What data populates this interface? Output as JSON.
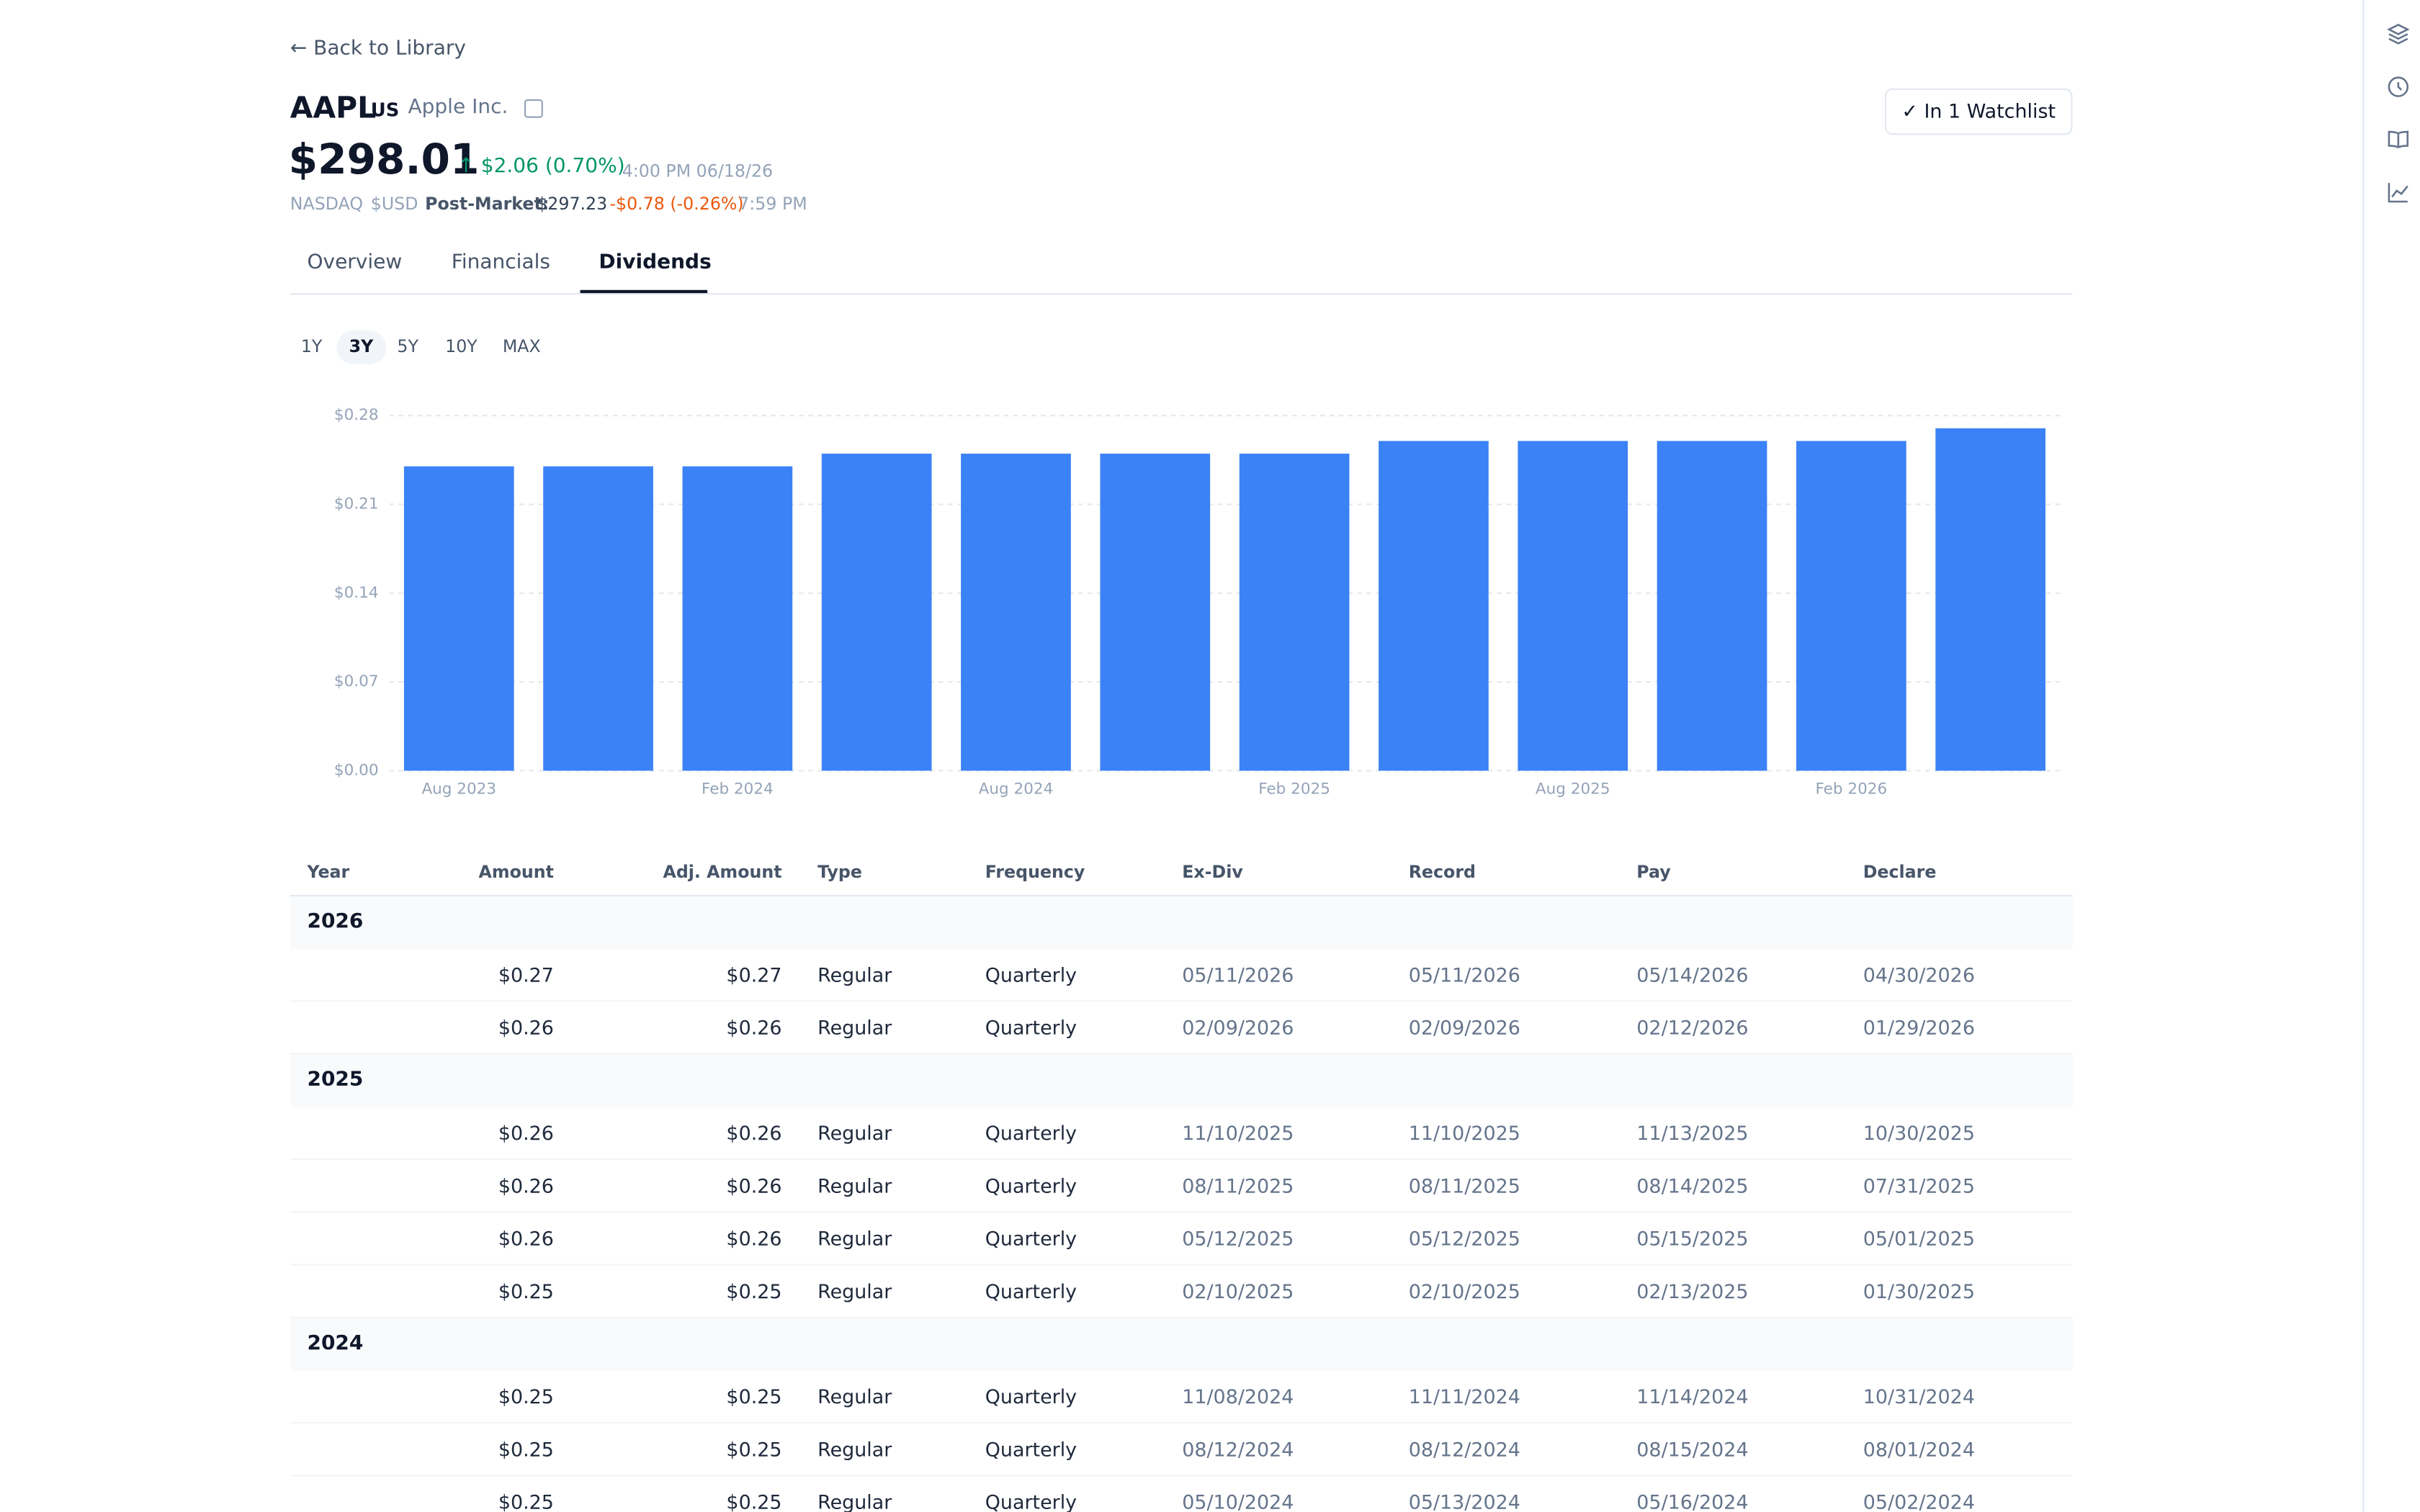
{
  "header": {
    "back": "Back to Library",
    "ticker": "AAPL",
    "country": "US",
    "company": "Apple Inc.",
    "watchlist": "In 1 Watchlist",
    "price": "$298.01",
    "change": "$2.06 (0.70%)",
    "time": "4:00 PM 06/18/26",
    "exchange": "NASDAQ",
    "currency": "$USD",
    "post_label": "Post-Market:",
    "post_price": "$297.23",
    "post_change": "-$0.78 (-0.26%)",
    "post_time": "7:59 PM"
  },
  "tabs": [
    "Overview",
    "Financials",
    "Dividends"
  ],
  "ranges": [
    "1Y",
    "3Y",
    "5Y",
    "10Y",
    "MAX"
  ],
  "chart_data": {
    "type": "bar",
    "color": "#3b82f6",
    "categories": [
      "Aug 2023",
      null,
      "Feb 2024",
      null,
      "Aug 2024",
      null,
      "Feb 2025",
      null,
      "Aug 2025",
      null,
      "Feb 2026",
      null
    ],
    "values": [
      0.24,
      0.24,
      0.24,
      0.25,
      0.25,
      0.25,
      0.25,
      0.26,
      0.26,
      0.26,
      0.26,
      0.27
    ],
    "ylim": [
      0,
      0.28
    ],
    "yticks": [
      {
        "value": 0,
        "label": "$0.00"
      },
      {
        "value": 0.07,
        "label": "$0.07"
      },
      {
        "value": 0.14,
        "label": "$0.14"
      },
      {
        "value": 0.21,
        "label": "$0.21"
      },
      {
        "value": 0.28,
        "label": "$0.28"
      }
    ],
    "grid": true
  },
  "table": {
    "columns": [
      "Year",
      "Amount",
      "Adj. Amount",
      "Type",
      "Frequency",
      "Ex-Div",
      "Record",
      "Pay",
      "Declare"
    ],
    "groups": [
      {
        "year": "2026",
        "rows": [
          [
            "$0.27",
            "$0.27",
            "Regular",
            "Quarterly",
            "05/11/2026",
            "05/11/2026",
            "05/14/2026",
            "04/30/2026"
          ],
          [
            "$0.26",
            "$0.26",
            "Regular",
            "Quarterly",
            "02/09/2026",
            "02/09/2026",
            "02/12/2026",
            "01/29/2026"
          ]
        ]
      },
      {
        "year": "2025",
        "rows": [
          [
            "$0.26",
            "$0.26",
            "Regular",
            "Quarterly",
            "11/10/2025",
            "11/10/2025",
            "11/13/2025",
            "10/30/2025"
          ],
          [
            "$0.26",
            "$0.26",
            "Regular",
            "Quarterly",
            "08/11/2025",
            "08/11/2025",
            "08/14/2025",
            "07/31/2025"
          ],
          [
            "$0.26",
            "$0.26",
            "Regular",
            "Quarterly",
            "05/12/2025",
            "05/12/2025",
            "05/15/2025",
            "05/01/2025"
          ],
          [
            "$0.25",
            "$0.25",
            "Regular",
            "Quarterly",
            "02/10/2025",
            "02/10/2025",
            "02/13/2025",
            "01/30/2025"
          ]
        ]
      },
      {
        "year": "2024",
        "rows": [
          [
            "$0.25",
            "$0.25",
            "Regular",
            "Quarterly",
            "11/08/2024",
            "11/11/2024",
            "11/14/2024",
            "10/31/2024"
          ],
          [
            "$0.25",
            "$0.25",
            "Regular",
            "Quarterly",
            "08/12/2024",
            "08/12/2024",
            "08/15/2024",
            "08/01/2024"
          ],
          [
            "$0.25",
            "$0.25",
            "Regular",
            "Quarterly",
            "05/10/2024",
            "05/13/2024",
            "05/16/2024",
            "05/02/2024"
          ]
        ]
      }
    ]
  }
}
